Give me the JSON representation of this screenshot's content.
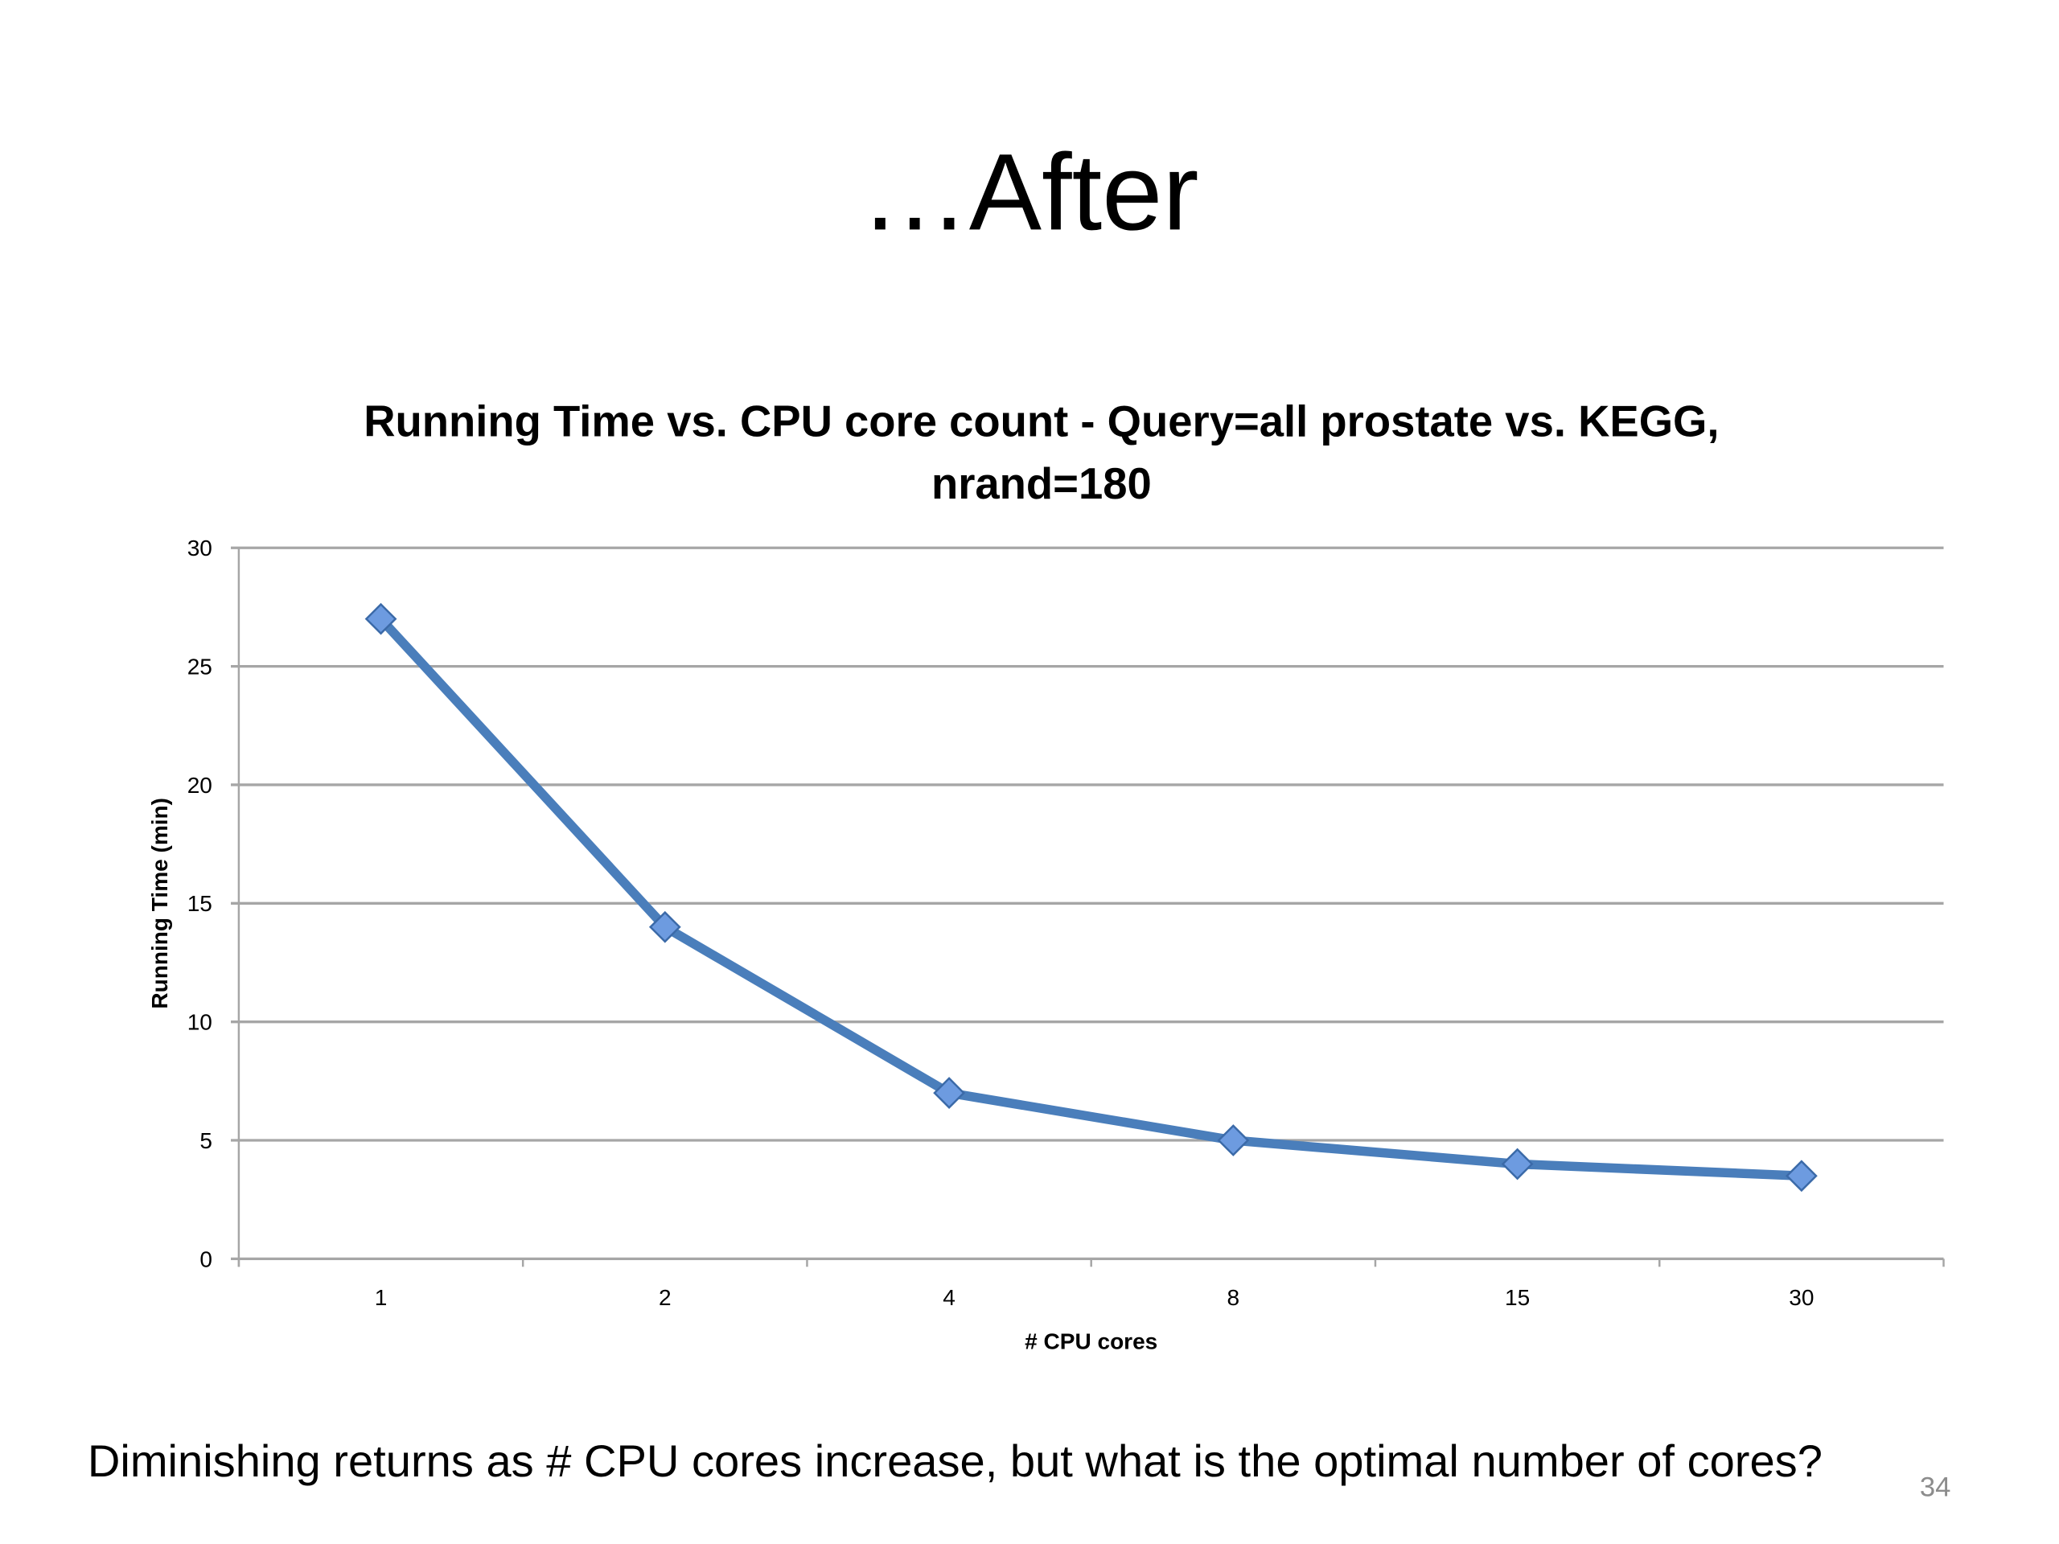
{
  "slide": {
    "title": "…After",
    "footnote": "Diminishing returns as # CPU cores increase, but what is the optimal number of cores?",
    "page_number": "34"
  },
  "chart_data": {
    "type": "line",
    "title": "Running Time vs. CPU core count - Query=all prostate vs. KEGG, nrand=180",
    "xlabel": "# CPU cores",
    "ylabel": "Running Time (min)",
    "categories": [
      "1",
      "2",
      "4",
      "8",
      "15",
      "30"
    ],
    "series": [
      {
        "name": "Running Time",
        "values": [
          27,
          14,
          7,
          5,
          4,
          3.5
        ],
        "color": "#4a7ebb",
        "marker": "diamond",
        "marker_color": "#6d9be0"
      }
    ],
    "ylim": [
      0,
      30
    ],
    "yticks": [
      0,
      5,
      10,
      15,
      20,
      25,
      30
    ],
    "grid": true,
    "legend": "none"
  }
}
